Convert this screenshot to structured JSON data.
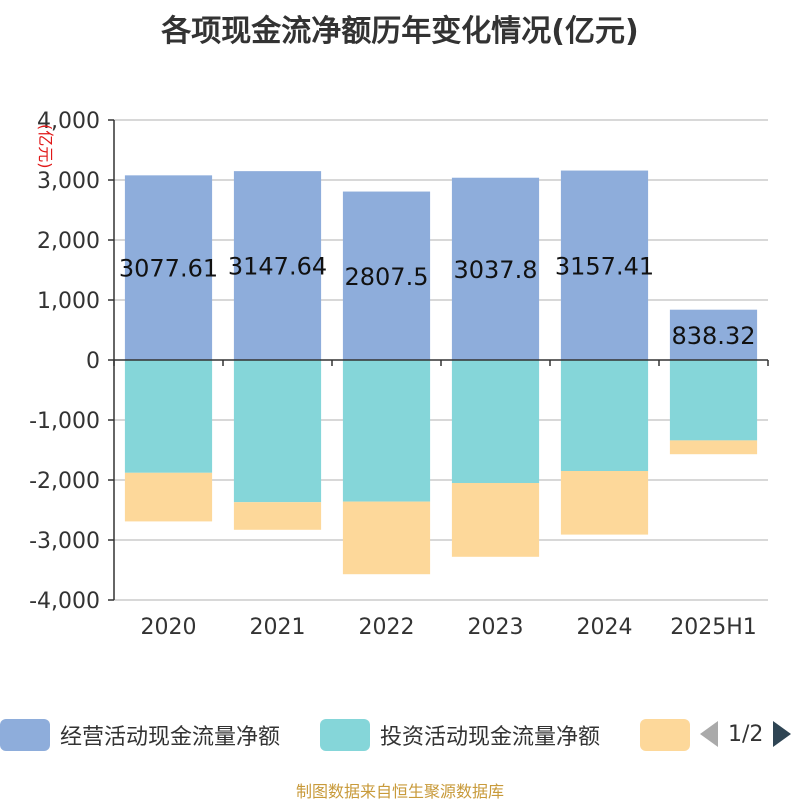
{
  "chart_data": {
    "type": "bar",
    "title": "各项现金流净额历年变化情况(亿元)",
    "unit_label": "(亿元)",
    "categories": [
      "2020",
      "2021",
      "2022",
      "2023",
      "2024",
      "2025H1"
    ],
    "ylim": [
      -4000,
      4000
    ],
    "yticks": [
      4000,
      3000,
      2000,
      1000,
      0,
      -1000,
      -2000,
      -3000,
      -4000
    ],
    "ytick_labels": [
      "4,000",
      "3,000",
      "2,000",
      "1,000",
      "0",
      "-1,000",
      "-2,000",
      "-3,000",
      "-4,000"
    ],
    "grid": true,
    "stacked": true,
    "legend_position": "bottom",
    "series": [
      {
        "name": "经营活动现金流量净额",
        "color": "#8eaddb",
        "values": [
          3077.61,
          3147.64,
          2807.5,
          3037.8,
          3157.41,
          838.32
        ],
        "labels": [
          "3077.61",
          "3147.64",
          "2807.5",
          "3037.8",
          "3157.41",
          "838.32"
        ]
      },
      {
        "name": "投资活动现金流量净额",
        "color": "#85d6d9",
        "values": [
          -1880,
          -2370,
          -2360,
          -2050,
          -1850,
          -1340
        ]
      },
      {
        "name": "",
        "color": "#fdd89a",
        "values": [
          -810,
          -460,
          -1210,
          -1230,
          -1060,
          -230
        ]
      }
    ]
  },
  "legend": {
    "items": [
      {
        "label": "经营活动现金流量净额",
        "color": "#8eaddb"
      },
      {
        "label": "投资活动现金流量净额",
        "color": "#85d6d9"
      },
      {
        "label": "",
        "color": "#fdd89a"
      }
    ],
    "pager": "1/2"
  },
  "source": "制图数据来自恒生聚源数据库"
}
